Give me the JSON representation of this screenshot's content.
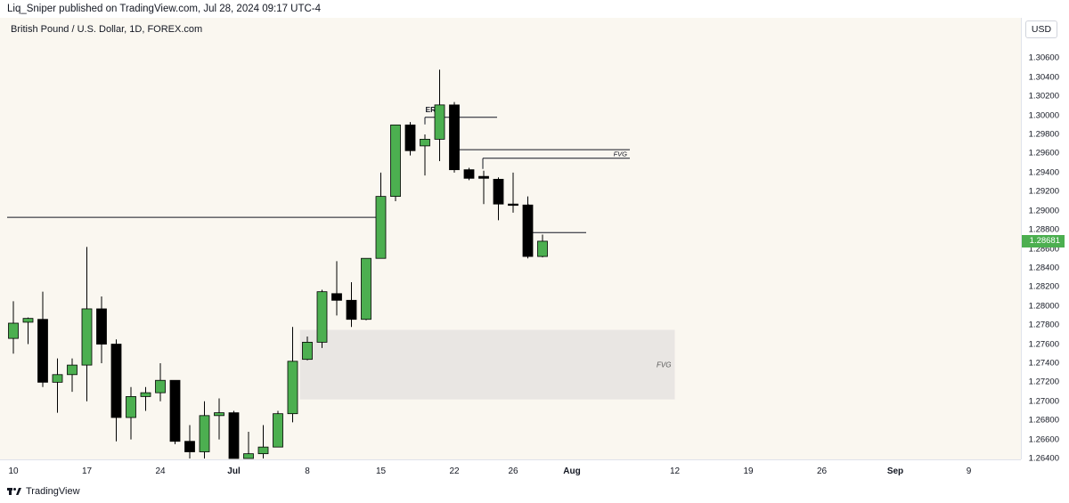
{
  "header": {
    "publisher_line": "Liq_Sniper published on TradingView.com, Jul 28, 2024 09:17 UTC-4"
  },
  "symbol": {
    "title": "British Pound / U.S. Dollar, 1D, FOREX.com"
  },
  "price_scale": {
    "currency": "USD",
    "last_price": "1.28681"
  },
  "footer": {
    "logo_text": "TradingView"
  },
  "colors": {
    "bull": "#4caf50",
    "bear": "#000000",
    "background": "#faf7f0",
    "fvg_zone": "#e9e6e3"
  },
  "chart_data": {
    "type": "candlestick",
    "ylim": [
      1.264,
      1.308
    ],
    "y_ticks": [
      "1.26400",
      "1.26600",
      "1.26800",
      "1.27000",
      "1.27200",
      "1.27400",
      "1.27600",
      "1.27800",
      "1.28000",
      "1.28200",
      "1.28400",
      "1.28600",
      "1.28800",
      "1.29000",
      "1.29200",
      "1.29400",
      "1.29600",
      "1.29800",
      "1.30000",
      "1.30200",
      "1.30400",
      "1.30600"
    ],
    "x_ticks": [
      {
        "label": "10",
        "day": 0
      },
      {
        "label": "17",
        "day": 5
      },
      {
        "label": "24",
        "day": 10
      },
      {
        "label": "Jul",
        "day": 15
      },
      {
        "label": "8",
        "day": 20
      },
      {
        "label": "15",
        "day": 25
      },
      {
        "label": "22",
        "day": 30
      },
      {
        "label": "26",
        "day": 34
      },
      {
        "label": "Aug",
        "day": 38
      },
      {
        "label": "12",
        "day": 45
      },
      {
        "label": "19",
        "day": 50
      },
      {
        "label": "26",
        "day": 55
      },
      {
        "label": "Sep",
        "day": 60
      },
      {
        "label": "9",
        "day": 65
      }
    ],
    "candles": [
      {
        "o": 1.2766,
        "h": 1.2805,
        "l": 1.275,
        "c": 1.2782
      },
      {
        "o": 1.2783,
        "h": 1.2788,
        "l": 1.276,
        "c": 1.2787
      },
      {
        "o": 1.2786,
        "h": 1.2815,
        "l": 1.2715,
        "c": 1.272
      },
      {
        "o": 1.272,
        "h": 1.2745,
        "l": 1.2688,
        "c": 1.2728
      },
      {
        "o": 1.2728,
        "h": 1.2745,
        "l": 1.271,
        "c": 1.2738
      },
      {
        "o": 1.2738,
        "h": 1.2862,
        "l": 1.27,
        "c": 1.2797
      },
      {
        "o": 1.2797,
        "h": 1.281,
        "l": 1.274,
        "c": 1.276
      },
      {
        "o": 1.276,
        "h": 1.2765,
        "l": 1.2658,
        "c": 1.2683
      },
      {
        "o": 1.2683,
        "h": 1.2715,
        "l": 1.266,
        "c": 1.2705
      },
      {
        "o": 1.2705,
        "h": 1.2715,
        "l": 1.269,
        "c": 1.2709
      },
      {
        "o": 1.2709,
        "h": 1.274,
        "l": 1.27,
        "c": 1.2722
      },
      {
        "o": 1.2722,
        "h": 1.2722,
        "l": 1.2655,
        "c": 1.2658
      },
      {
        "o": 1.2658,
        "h": 1.2675,
        "l": 1.264,
        "c": 1.2647
      },
      {
        "o": 1.2647,
        "h": 1.27,
        "l": 1.264,
        "c": 1.2685
      },
      {
        "o": 1.2685,
        "h": 1.2703,
        "l": 1.266,
        "c": 1.2688
      },
      {
        "o": 1.2688,
        "h": 1.269,
        "l": 1.264,
        "c": 1.264
      },
      {
        "o": 1.264,
        "h": 1.2668,
        "l": 1.264,
        "c": 1.2645
      },
      {
        "o": 1.2645,
        "h": 1.2675,
        "l": 1.264,
        "c": 1.2652
      },
      {
        "o": 1.2652,
        "h": 1.269,
        "l": 1.2652,
        "c": 1.2687
      },
      {
        "o": 1.2687,
        "h": 1.2778,
        "l": 1.2678,
        "c": 1.2742
      },
      {
        "o": 1.2744,
        "h": 1.2768,
        "l": 1.2743,
        "c": 1.2762
      },
      {
        "o": 1.2762,
        "h": 1.2817,
        "l": 1.2756,
        "c": 1.2815
      },
      {
        "o": 1.2813,
        "h": 1.2847,
        "l": 1.279,
        "c": 1.2806
      },
      {
        "o": 1.2806,
        "h": 1.2825,
        "l": 1.2778,
        "c": 1.2786
      },
      {
        "o": 1.2786,
        "h": 1.285,
        "l": 1.2785,
        "c": 1.285
      },
      {
        "o": 1.285,
        "h": 1.294,
        "l": 1.285,
        "c": 1.2915
      },
      {
        "o": 1.2915,
        "h": 1.299,
        "l": 1.291,
        "c": 1.299
      },
      {
        "o": 1.299,
        "h": 1.2993,
        "l": 1.2958,
        "c": 1.2963
      },
      {
        "o": 1.2968,
        "h": 1.298,
        "l": 1.2937,
        "c": 1.2975
      },
      {
        "o": 1.2975,
        "h": 1.3048,
        "l": 1.2952,
        "c": 1.3011
      },
      {
        "o": 1.3011,
        "h": 1.3014,
        "l": 1.294,
        "c": 1.2943
      },
      {
        "o": 1.2943,
        "h": 1.2945,
        "l": 1.2932,
        "c": 1.2934
      },
      {
        "o": 1.2936,
        "h": 1.2942,
        "l": 1.2907,
        "c": 1.2934
      },
      {
        "o": 1.2933,
        "h": 1.2935,
        "l": 1.289,
        "c": 1.2907
      },
      {
        "o": 1.2907,
        "h": 1.294,
        "l": 1.2898,
        "c": 1.2906
      },
      {
        "o": 1.2906,
        "h": 1.2915,
        "l": 1.285,
        "c": 1.2852
      },
      {
        "o": 1.2852,
        "h": 1.2875,
        "l": 1.2851,
        "c": 1.2868
      }
    ],
    "annotations": {
      "erl_label": "ERL",
      "fvg_label_top": "FVG",
      "fvg_label_zone": "FVG",
      "horizontal_level": 1.2893,
      "fvg_zone": {
        "top": 1.2775,
        "bottom": 1.2702,
        "from_day": 19.5,
        "to_day": 45
      },
      "erl_line": {
        "price": 1.2998,
        "from_day": 27.5,
        "to_day": 32
      },
      "fvg_upper": {
        "price": 1.2964,
        "from_day": 30,
        "to_day": 42
      },
      "fvg_lower": {
        "price": 1.2955,
        "from_day": 32,
        "to_day": 42
      },
      "short_line": {
        "price": 1.2877,
        "from_day": 35,
        "to_day": 39
      }
    }
  }
}
